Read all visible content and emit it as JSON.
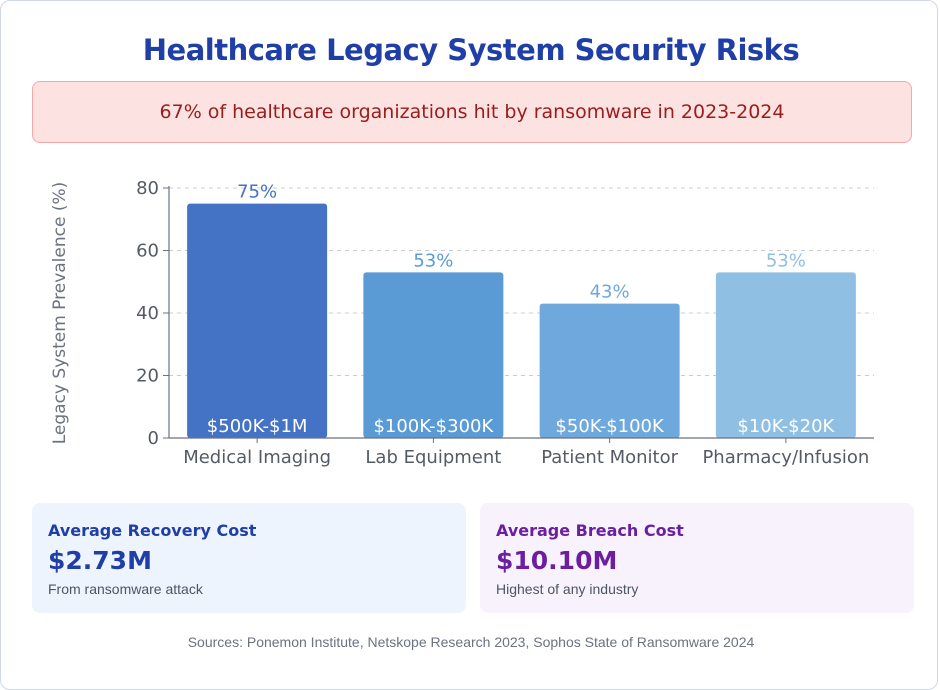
{
  "title": "Healthcare Legacy System Security Risks",
  "alert": {
    "text": "67% of healthcare organizations hit by ransomware in 2023-2024"
  },
  "chart_data": {
    "type": "bar",
    "categories": [
      "Medical Imaging",
      "Lab Equipment",
      "Patient Monitor",
      "Pharmacy/Infusion"
    ],
    "values": [
      75,
      53,
      43,
      53
    ],
    "value_labels": [
      "75%",
      "53%",
      "43%",
      "53%"
    ],
    "bar_texts": [
      "$500K-$1M",
      "$100K-$300K",
      "$50K-$100K",
      "$10K-$20K"
    ],
    "colors": [
      "#4472c4",
      "#5b9bd5",
      "#6fa8dc",
      "#8fc0e3"
    ],
    "ylabel": "Legacy System Prevalence (%)",
    "xlabel": "",
    "ylim": [
      0,
      80
    ],
    "yticks": [
      0,
      20,
      40,
      60,
      80
    ],
    "grid": true
  },
  "stats": {
    "recovery": {
      "label": "Average Recovery Cost",
      "value": "$2.73M",
      "note": "From ransomware attack"
    },
    "breach": {
      "label": "Average Breach Cost",
      "value": "$10.10M",
      "note": "Highest of any industry"
    }
  },
  "sources": "Sources: Ponemon Institute, Netskope Research 2023, Sophos State of Ransomware 2024"
}
